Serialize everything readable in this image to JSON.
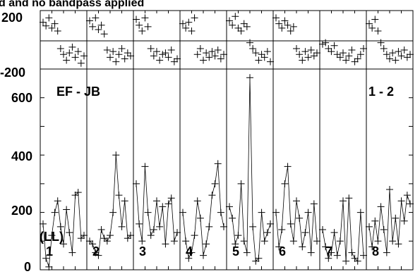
{
  "header_text": "d and no bandpass applied",
  "chart_data": {
    "type": "scatter",
    "baseline": "EF - JB",
    "ifs": "1 - 2",
    "polarization": "(LL)",
    "channels": [
      "1",
      "2",
      "3",
      "4",
      "5",
      "6",
      "7",
      "8"
    ],
    "top_panel": {
      "ylim": [
        -200,
        200
      ],
      "yticks": [
        "200",
        "-200"
      ],
      "reference_value": 0,
      "values": [
        [
          120,
          95,
          150,
          80,
          110,
          60,
          -60,
          -100,
          -140,
          -90,
          -50,
          -120,
          -80,
          -160,
          -110
        ],
        [
          130,
          90,
          150,
          70,
          100,
          40,
          -70,
          -120,
          -80,
          -150,
          -100,
          -60,
          -130,
          -90,
          -110
        ],
        [
          140,
          100,
          60,
          150,
          90,
          -60,
          -110,
          -80,
          -140,
          -100,
          -90,
          -120,
          -70,
          -150,
          -130
        ],
        [
          110,
          80,
          120,
          60,
          150,
          -100,
          -60,
          -140,
          -90,
          -120,
          -80,
          -110,
          -70,
          -130,
          -100
        ],
        [
          130,
          100,
          160,
          80,
          60,
          110,
          90,
          -20,
          -60,
          -90,
          -140,
          -100,
          -120,
          -80,
          -150
        ],
        [
          150,
          110,
          80,
          130,
          100,
          60,
          90,
          -60,
          -100,
          -140,
          -80,
          -120,
          -70,
          -110,
          -90
        ],
        [
          -30,
          -20,
          -60,
          -80,
          -40,
          -100,
          -120,
          -90,
          -140,
          -110,
          -70,
          -150,
          -130,
          -100,
          -60
        ],
        [
          110,
          80,
          140,
          60,
          -20,
          -60,
          -100,
          -130,
          -90,
          -140,
          -80,
          -110,
          -70,
          -120,
          -100
        ]
      ]
    },
    "bottom_panel": {
      "ylim": [
        0,
        700
      ],
      "yticks": [
        "0",
        "200",
        "400",
        "600"
      ],
      "values": [
        [
          160,
          40,
          10,
          120,
          200,
          240,
          150,
          90,
          210,
          130,
          60,
          260,
          270,
          110,
          120
        ],
        [
          100,
          90,
          60,
          50,
          140,
          110,
          100,
          120,
          200,
          400,
          260,
          150,
          240,
          110,
          120
        ],
        [
          300,
          160,
          100,
          360,
          200,
          120,
          140,
          240,
          150,
          220,
          90,
          230,
          250,
          100,
          130
        ],
        [
          200,
          100,
          40,
          60,
          120,
          240,
          180,
          50,
          90,
          150,
          260,
          300,
          370,
          200,
          150
        ],
        [
          220,
          180,
          90,
          120,
          300,
          100,
          60,
          670,
          150,
          30,
          40,
          200,
          100,
          130,
          160
        ],
        [
          200,
          80,
          140,
          300,
          360,
          160,
          100,
          240,
          180,
          80,
          130,
          200,
          60,
          230,
          100
        ],
        [
          140,
          80,
          40,
          60,
          130,
          50,
          100,
          240,
          30,
          250,
          60,
          40,
          30,
          200,
          50
        ],
        [
          150,
          80,
          170,
          100,
          220,
          140,
          60,
          280,
          100,
          180,
          90,
          240,
          170,
          260,
          230
        ]
      ]
    },
    "show_y_zero_line_top": true
  }
}
